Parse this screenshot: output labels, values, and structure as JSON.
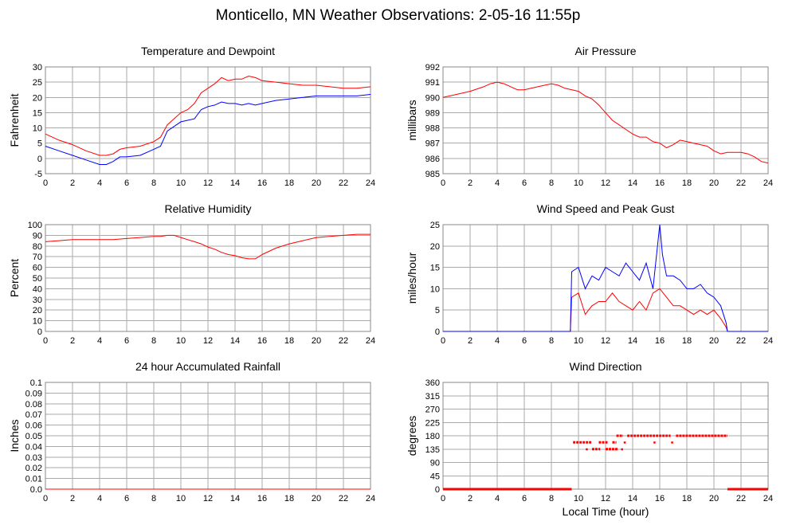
{
  "title": "Monticello, MN Weather Observations: 2-05-16 11:55p",
  "xlabel": "Local Time (hour)",
  "colors": {
    "series_red": "#ff0000",
    "series_blue": "#0000ff",
    "grid": "#aaaaaa"
  },
  "chart_data": [
    {
      "id": "temp",
      "type": "line",
      "title": "Temperature and Dewpoint",
      "ylabel": "Fahrenheit",
      "xlim": [
        0,
        24
      ],
      "ylim": [
        -5,
        30
      ],
      "xticks": [
        0,
        2,
        4,
        6,
        8,
        10,
        12,
        14,
        16,
        18,
        20,
        22,
        24
      ],
      "yticks": [
        -5,
        0,
        5,
        10,
        15,
        20,
        25,
        30
      ],
      "grid": true,
      "series": [
        {
          "color": "#ff0000",
          "x": [
            0,
            1,
            2,
            3,
            4,
            4.5,
            5,
            5.5,
            6,
            7,
            8,
            8.5,
            9,
            10,
            10.5,
            11,
            11.5,
            12,
            12.5,
            13,
            13.5,
            14,
            14.5,
            15,
            15.5,
            16,
            17,
            18,
            19,
            20,
            21,
            22,
            23,
            24
          ],
          "y": [
            8,
            6,
            4.5,
            2.5,
            1,
            1,
            1.5,
            3,
            3.5,
            4,
            5.5,
            7,
            11,
            15,
            16,
            18,
            21.5,
            23,
            24.5,
            26.5,
            25.5,
            26,
            26,
            27,
            26.5,
            25.5,
            25,
            24.5,
            24,
            24,
            23.5,
            23,
            23,
            23.5
          ]
        },
        {
          "color": "#0000ff",
          "x": [
            0,
            1,
            2,
            3,
            4,
            4.5,
            5,
            5.5,
            6,
            7,
            8,
            8.5,
            9,
            10,
            10.5,
            11,
            11.5,
            12,
            12.5,
            13,
            13.5,
            14,
            14.5,
            15,
            15.5,
            16,
            17,
            18,
            19,
            20,
            21,
            22,
            23,
            24
          ],
          "y": [
            4,
            2.5,
            1,
            -0.5,
            -2,
            -2,
            -1,
            0.5,
            0.5,
            1,
            3,
            4,
            9,
            12,
            12.5,
            13,
            16,
            17,
            17.5,
            18.5,
            18,
            18,
            17.5,
            18,
            17.5,
            18,
            19,
            19.5,
            20,
            20.5,
            20.5,
            20.5,
            20.5,
            21
          ]
        }
      ]
    },
    {
      "id": "pressure",
      "type": "line",
      "title": "Air Pressure",
      "ylabel": "millibars",
      "xlim": [
        0,
        24
      ],
      "ylim": [
        985,
        992
      ],
      "xticks": [
        0,
        2,
        4,
        6,
        8,
        10,
        12,
        14,
        16,
        18,
        20,
        22,
        24
      ],
      "yticks": [
        985,
        986,
        987,
        988,
        989,
        990,
        991,
        992
      ],
      "grid": true,
      "series": [
        {
          "color": "#ff0000",
          "x": [
            0,
            0.5,
            1,
            2,
            3,
            3.5,
            4,
            4.5,
            5,
            5.5,
            6,
            6.5,
            7,
            7.5,
            8,
            8.5,
            9,
            10,
            10.5,
            11,
            11.5,
            12,
            12.5,
            13,
            13.5,
            14,
            14.5,
            15,
            15.5,
            16,
            16.5,
            17,
            17.5,
            18,
            18.5,
            19,
            19.5,
            20,
            20.5,
            21,
            21.5,
            22,
            22.5,
            23,
            23.5,
            24
          ],
          "y": [
            990,
            990.1,
            990.2,
            990.4,
            990.7,
            990.9,
            991,
            990.9,
            990.7,
            990.5,
            990.5,
            990.6,
            990.7,
            990.8,
            990.9,
            990.8,
            990.6,
            990.4,
            990.1,
            989.9,
            989.5,
            989,
            988.5,
            988.2,
            987.9,
            987.6,
            987.4,
            987.4,
            987.1,
            987,
            986.7,
            986.9,
            987.2,
            987.1,
            987,
            986.9,
            986.8,
            986.5,
            986.3,
            986.4,
            986.4,
            986.4,
            986.3,
            986.1,
            985.8,
            985.7
          ]
        }
      ]
    },
    {
      "id": "humidity",
      "type": "line",
      "title": "Relative Humidity",
      "ylabel": "Percent",
      "xlim": [
        0,
        24
      ],
      "ylim": [
        0,
        100
      ],
      "xticks": [
        0,
        2,
        4,
        6,
        8,
        10,
        12,
        14,
        16,
        18,
        20,
        22,
        24
      ],
      "yticks": [
        0,
        10,
        20,
        30,
        40,
        50,
        60,
        70,
        80,
        90,
        100
      ],
      "grid": true,
      "series": [
        {
          "color": "#ff0000",
          "x": [
            0,
            1,
            2,
            3,
            4,
            5,
            6,
            7,
            8,
            8.5,
            9,
            9.5,
            10,
            10.5,
            11,
            11.5,
            12,
            12.5,
            13,
            13.5,
            14,
            14.5,
            15,
            15.5,
            16,
            16.5,
            17,
            18,
            19,
            20,
            21,
            22,
            23,
            24
          ],
          "y": [
            84,
            85,
            86,
            86,
            86,
            86,
            87,
            88,
            89,
            89,
            90,
            90,
            88,
            86,
            84,
            82,
            79,
            77,
            74,
            72,
            71,
            69,
            68,
            68,
            72,
            75,
            78,
            82,
            85,
            88,
            89,
            90,
            91,
            91
          ]
        }
      ]
    },
    {
      "id": "wind",
      "type": "line",
      "title": "Wind Speed and Peak Gust",
      "ylabel": "miles/hour",
      "xlim": [
        0,
        24
      ],
      "ylim": [
        0,
        25
      ],
      "xticks": [
        0,
        2,
        4,
        6,
        8,
        10,
        12,
        14,
        16,
        18,
        20,
        22,
        24
      ],
      "yticks": [
        0,
        5,
        10,
        15,
        20,
        25
      ],
      "grid": true,
      "series": [
        {
          "color": "#ff0000",
          "x": [
            0,
            9.4,
            9.5,
            10,
            10.5,
            11,
            11.5,
            12,
            12.5,
            13,
            13.5,
            14,
            14.5,
            15,
            15.5,
            16,
            16.5,
            17,
            17.5,
            18,
            18.5,
            19,
            19.5,
            20,
            20.5,
            20.9,
            21,
            24
          ],
          "y": [
            0,
            0,
            8,
            9,
            4,
            6,
            7,
            7,
            9,
            7,
            6,
            5,
            7,
            5,
            9,
            10,
            8,
            6,
            6,
            5,
            4,
            5,
            4,
            5,
            3,
            1,
            0,
            0
          ]
        },
        {
          "color": "#0000ff",
          "x": [
            0,
            9.4,
            9.5,
            10,
            10.5,
            11,
            11.5,
            12,
            12.5,
            13,
            13.5,
            14,
            14.5,
            15,
            15.5,
            16,
            16.2,
            16.5,
            17,
            17.5,
            18,
            18.5,
            19,
            19.5,
            20,
            20.5,
            20.9,
            21,
            24
          ],
          "y": [
            0,
            0,
            14,
            15,
            10,
            13,
            12,
            15,
            14,
            13,
            16,
            14,
            12,
            16,
            10,
            25,
            18,
            13,
            13,
            12,
            10,
            10,
            11,
            9,
            8,
            6,
            2,
            0,
            0
          ]
        }
      ]
    },
    {
      "id": "rain",
      "type": "line",
      "title": "24 hour Accumulated Rainfall",
      "ylabel": "Inches",
      "xlim": [
        0,
        24
      ],
      "ylim": [
        0,
        0.1
      ],
      "xticks": [
        0,
        2,
        4,
        6,
        8,
        10,
        12,
        14,
        16,
        18,
        20,
        22,
        24
      ],
      "yticks": [
        0.0,
        0.01,
        0.02,
        0.03,
        0.04,
        0.05,
        0.06,
        0.07,
        0.08,
        0.09,
        0.1
      ],
      "ytick_labels": [
        "0.0",
        "0.01",
        "0.02",
        "0.03",
        "0.04",
        "0.05",
        "0.06",
        "0.07",
        "0.08",
        "0.09",
        "0.1"
      ],
      "grid": true,
      "series": [
        {
          "color": "#ff0000",
          "x": [
            0,
            24
          ],
          "y": [
            0,
            0
          ]
        }
      ]
    },
    {
      "id": "direction",
      "type": "scatter",
      "title": "Wind Direction",
      "ylabel": "degrees",
      "xlim": [
        0,
        24
      ],
      "ylim": [
        0,
        360
      ],
      "xticks": [
        0,
        2,
        4,
        6,
        8,
        10,
        12,
        14,
        16,
        18,
        20,
        22,
        24
      ],
      "yticks": [
        0,
        45,
        90,
        135,
        180,
        225,
        270,
        315,
        360
      ],
      "grid": true,
      "segments": [
        {
          "color": "#ff0000",
          "x_start": 0,
          "x_end": 9.5,
          "y": 0
        },
        {
          "color": "#ff0000",
          "x_start": 9.6,
          "x_end": 11,
          "y": 158
        },
        {
          "color": "#ff0000",
          "x_start": 11.5,
          "x_end": 12.2,
          "y": 158
        },
        {
          "color": "#ff0000",
          "x_start": 12.5,
          "x_end": 12.8,
          "y": 158
        },
        {
          "color": "#ff0000",
          "x_start": 11,
          "x_end": 11.6,
          "y": 135
        },
        {
          "color": "#ff0000",
          "x_start": 12,
          "x_end": 12.9,
          "y": 135
        },
        {
          "color": "#ff0000",
          "x_start": 12.8,
          "x_end": 13.3,
          "y": 180
        },
        {
          "color": "#ff0000",
          "x_start": 13.6,
          "x_end": 16.8,
          "y": 180
        },
        {
          "color": "#ff0000",
          "x_start": 17.2,
          "x_end": 21,
          "y": 180
        },
        {
          "color": "#ff0000",
          "x_start": 21,
          "x_end": 24,
          "y": 0
        }
      ],
      "points": [
        {
          "color": "#ff0000",
          "x": 10.6,
          "y": 135
        },
        {
          "color": "#ff0000",
          "x": 13.4,
          "y": 158
        },
        {
          "color": "#ff0000",
          "x": 15.6,
          "y": 158
        },
        {
          "color": "#ff0000",
          "x": 16.9,
          "y": 158
        },
        {
          "color": "#ff0000",
          "x": 13.2,
          "y": 135
        }
      ]
    }
  ]
}
